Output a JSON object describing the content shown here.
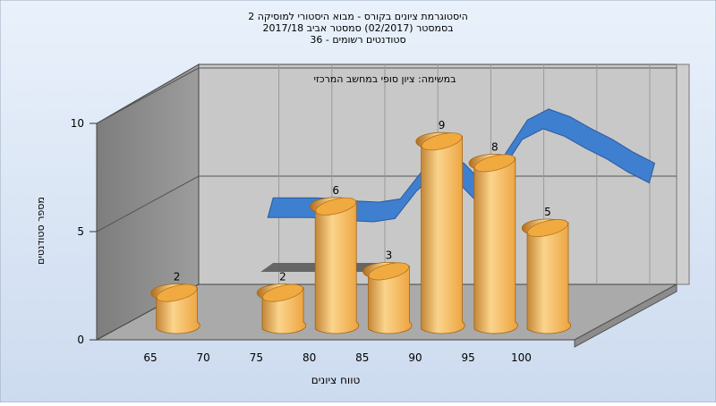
{
  "chart_data": {
    "type": "bar",
    "title_lines": [
      "היסטוגרמת ציונים בקורס - מבוא היסטורי למוסיקה 2",
      "בסמסטר  (02/2017)  סמסטר אביב 2017/18",
      "סטודנטים רשומים - 36"
    ],
    "subtitle": "במשימה: ציון סופי במחשב המרכזי",
    "xlabel": "טווח ציונים",
    "ylabel": "מספר סטודנטים",
    "ylim": [
      0,
      10
    ],
    "y_ticks": [
      "0",
      "5",
      "10"
    ],
    "x_ticks": [
      "65",
      "70",
      "75",
      "80",
      "85",
      "90",
      "95",
      "100"
    ],
    "categories": [
      "65",
      "75",
      "80",
      "85",
      "90",
      "95",
      "100"
    ],
    "values": [
      2,
      2,
      6,
      3,
      9,
      8,
      5
    ],
    "data_labels": [
      "2",
      "2",
      "6",
      "3",
      "9",
      "8",
      "5"
    ],
    "curve": {
      "x": [
        70,
        72,
        74,
        76,
        78,
        80,
        82,
        84,
        86,
        88,
        90,
        92,
        94,
        96,
        98,
        100,
        102,
        104,
        106
      ],
      "y": [
        4,
        4,
        4,
        3.95,
        3.85,
        3.8,
        3.95,
        5.2,
        6.1,
        5.6,
        4.6,
        6.1,
        7.6,
        8.1,
        7.75,
        7.2,
        6.7,
        6.1,
        5.6
      ]
    },
    "colors": {
      "bar_light": "#fbd48c",
      "bar_mid": "#eca23c",
      "bar_dark": "#b36f1c",
      "bar_top": "#f0aa40",
      "curve": "#3f7fcf",
      "curve_edge": "#2a5a9c",
      "curve_shadow": "#5b5b5b",
      "back_wall": "#c8c8c8",
      "side_wall": "#8a8a8a",
      "floor": "#aaaaaa",
      "background_top": "#e9f1fb",
      "background_bottom": "#cddbef"
    }
  }
}
